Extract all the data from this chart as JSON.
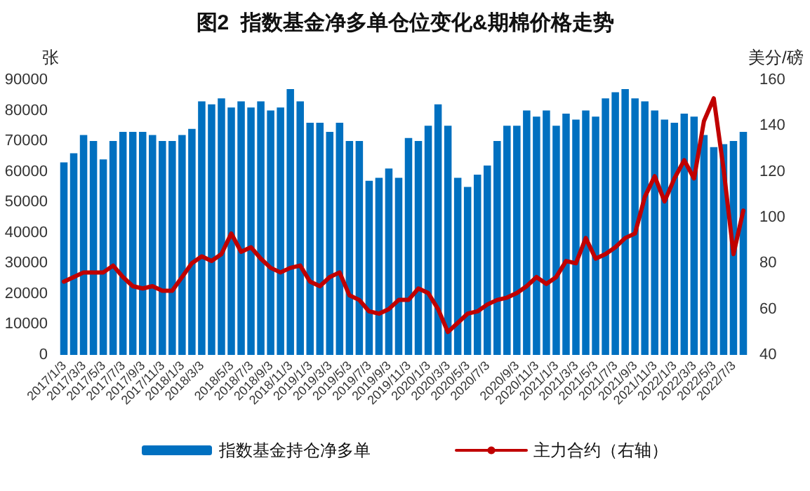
{
  "chart_data": {
    "type": "bar",
    "title": "图2  指数基金净多单仓位变化&期棉价格走势",
    "categories": [
      "2017/1/3",
      null,
      "2017/3/3",
      null,
      "2017/5/3",
      null,
      "2017/7/3",
      null,
      "2017/9/3",
      null,
      "2017/11/3",
      null,
      "2018/1/3",
      null,
      "2018/3/3",
      null,
      null,
      "2018/5/3",
      null,
      "2018/7/3",
      null,
      "2018/9/3",
      null,
      "2018/11/3",
      null,
      "2019/1/3",
      null,
      "2019/3/3",
      null,
      "2019/5/3",
      null,
      "2019/7/3",
      null,
      "2019/9/3",
      null,
      "2019/11/3",
      null,
      "2020/1/3",
      null,
      "2020/3/3",
      null,
      "2020/5/3",
      null,
      "2020/7/3",
      null,
      null,
      "2020/9/3",
      null,
      "2020/11/3",
      null,
      "2021/1/3",
      null,
      "2021/3/3",
      null,
      "2021/5/3",
      null,
      "2021/7/3",
      null,
      "2021/9/3",
      null,
      "2021/11/3",
      null,
      "2022/1/3",
      null,
      "2022/3/3",
      null,
      "2022/5/3",
      null,
      "2022/7/3",
      null
    ],
    "series": [
      {
        "name": "指数基金持仓净多单",
        "color": "#0070c0",
        "values": [
          63000,
          66000,
          72000,
          70000,
          64000,
          70000,
          73000,
          73000,
          73000,
          72000,
          70000,
          70000,
          72000,
          74000,
          83000,
          82000,
          84000,
          81000,
          83000,
          81000,
          83000,
          80000,
          81000,
          87000,
          83000,
          76000,
          76000,
          73000,
          76000,
          70000,
          70000,
          57000,
          58000,
          61000,
          58000,
          71000,
          70000,
          75000,
          82000,
          75000,
          58000,
          55000,
          59000,
          62000,
          70000,
          75000,
          75000,
          80000,
          78000,
          80000,
          75000,
          79000,
          77000,
          80000,
          78000,
          84000,
          86000,
          87000,
          84000,
          83000,
          80000,
          77000,
          76000,
          79000,
          78000,
          72000,
          68000,
          69000,
          70000,
          73000
        ]
      },
      {
        "name": "主力合约（右轴）",
        "type": "line",
        "axis": "y2",
        "color": "#c00000",
        "values": [
          72,
          74,
          76,
          76,
          76,
          79,
          74,
          70,
          69,
          70,
          68,
          68,
          74,
          80,
          83,
          81,
          84,
          93,
          85,
          87,
          82,
          78,
          76,
          78,
          79,
          72,
          70,
          74,
          76,
          66,
          64,
          59,
          58,
          60,
          64,
          64,
          69,
          67,
          60,
          50,
          54,
          58,
          59,
          62,
          64,
          65,
          67,
          70,
          74,
          71,
          74,
          81,
          80,
          91,
          82,
          84,
          87,
          91,
          93,
          109,
          118,
          107,
          117,
          125,
          117,
          142,
          152,
          121,
          84,
          103
        ]
      }
    ],
    "ylabel": "张",
    "y2label": "美分/磅",
    "ylim": [
      0,
      90000
    ],
    "yticks": [
      0,
      10000,
      20000,
      30000,
      40000,
      50000,
      60000,
      70000,
      80000,
      90000
    ],
    "y2lim": [
      40,
      160
    ],
    "y2ticks": [
      40,
      60,
      80,
      100,
      120,
      140,
      160
    ],
    "legend": "bottom",
    "grid": false,
    "marker": "none",
    "line_style": "solid"
  }
}
